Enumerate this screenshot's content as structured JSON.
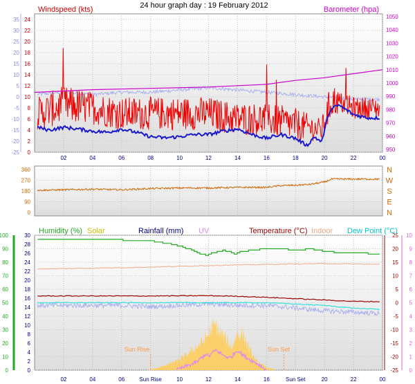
{
  "title": "24 hour graph day : 19 February 2012",
  "colors": {
    "windspeed": "#ee0000",
    "gust_blue": "#1a1acc",
    "barometer": "#cc00cc",
    "temperature_light": "#aab0ee",
    "direction": "#cc6600",
    "humidity": "#22aa22",
    "solar": "#ffcc55",
    "rainfall": "#000088",
    "uv": "#dd88ee",
    "temperature": "#990000",
    "indoor": "#f0a888",
    "dewpoint": "#33dddd",
    "sun_event": "#ff9944"
  },
  "chart_data": [
    {
      "id": "wind",
      "type": "line",
      "left_label": "Windspeed (kts)",
      "right_label": "Barometer (hpa)",
      "x_ticks": [
        "02",
        "04",
        "06",
        "08",
        "10",
        "12",
        "14",
        "16",
        "18",
        "20",
        "22",
        "00"
      ],
      "windspeed_ticks": [
        "0",
        "2",
        "4",
        "6",
        "8",
        "10",
        "12",
        "14",
        "16",
        "18",
        "20",
        "22",
        "24"
      ],
      "outer_temp_ticks": [
        "-25",
        "-20",
        "-15",
        "-10",
        "-5",
        "0",
        "5",
        "10",
        "15",
        "20",
        "25",
        "30",
        "35"
      ],
      "barometer_ticks": [
        "950",
        "960",
        "970",
        "980",
        "990",
        "1000",
        "1010",
        "1020",
        "1030",
        "1040",
        "1050"
      ],
      "windspeed_range": [
        0,
        25
      ],
      "barometer_range": [
        948,
        1052
      ],
      "series": [
        {
          "key": "wind_max",
          "x": [
            0.2,
            2,
            4,
            6,
            8,
            10,
            12,
            14,
            16,
            18,
            19.8,
            20.5,
            21,
            22,
            23,
            23.8
          ],
          "y": [
            10,
            12,
            11,
            10,
            10,
            10,
            10,
            9,
            9,
            8,
            6,
            13,
            11,
            10,
            10,
            10
          ]
        },
        {
          "key": "wind_min",
          "x": [
            0.2,
            2,
            4,
            6,
            8,
            10,
            12,
            14,
            16,
            18,
            19.8,
            20.5,
            21,
            22,
            23,
            23.8
          ],
          "y": [
            4,
            5,
            5,
            4,
            4,
            4,
            4,
            3,
            3,
            2,
            2,
            6,
            7,
            6,
            6,
            6
          ]
        },
        {
          "key": "gust_blue",
          "x": [
            0.2,
            1,
            2,
            3,
            4,
            5,
            6,
            7,
            8,
            9,
            10,
            11,
            12,
            13,
            14,
            15,
            16,
            17,
            18,
            18.8,
            19.3,
            19.8,
            20.3,
            20.7,
            21,
            22,
            23,
            23.8
          ],
          "y": [
            4.5,
            4,
            4.5,
            4.2,
            3.8,
            3.6,
            4.2,
            3.6,
            2.8,
            2.6,
            2.8,
            3.2,
            3.2,
            3.8,
            4.2,
            3.2,
            2.5,
            3.2,
            2.5,
            1.2,
            2.8,
            1.8,
            7.2,
            8.2,
            8.5,
            6.8,
            6.2,
            6.2
          ]
        },
        {
          "key": "pressure",
          "x": [
            0,
            4,
            8,
            12,
            14,
            16,
            18,
            20,
            22,
            24
          ],
          "y": [
            993,
            995,
            996,
            997,
            998,
            999,
            1002,
            1004,
            1007,
            1010
          ]
        },
        {
          "key": "temp_outer",
          "x": [
            0,
            2,
            4,
            6,
            8,
            10,
            12,
            14,
            16,
            18,
            20,
            22,
            24
          ],
          "y": [
            0,
            1,
            0,
            1,
            1,
            2,
            3,
            2,
            1,
            0,
            -1,
            -2,
            -2
          ]
        }
      ]
    },
    {
      "id": "direction",
      "type": "line",
      "ticks": [
        "0",
        "90",
        "180",
        "270",
        "360"
      ],
      "compass": [
        "N",
        "W",
        "S",
        "E",
        "N"
      ],
      "range": [
        0,
        360
      ],
      "series": [
        {
          "key": "wind_dir",
          "x": [
            0,
            2,
            4,
            6,
            8,
            10,
            12,
            14,
            16,
            17,
            18,
            19,
            20,
            20.5,
            22,
            24
          ],
          "y": [
            185,
            190,
            195,
            190,
            200,
            205,
            205,
            210,
            210,
            225,
            228,
            235,
            255,
            280,
            280,
            280
          ]
        }
      ]
    },
    {
      "id": "weather",
      "type": "line",
      "labels": [
        "Humidity (%)",
        "Solar",
        "Rainfall (mm)",
        "UV",
        "Temperature (°C)",
        "Indoor",
        "Dew Point (°C)"
      ],
      "x_ticks": [
        "02",
        "04",
        "06",
        "Sun Rise",
        "10",
        "12",
        "14",
        "16",
        "Sun Set",
        "20",
        "22",
        "00"
      ],
      "sunrise_label": "Sun Rise",
      "sunset_label": "Sun Set",
      "humidity_ticks": [
        "0",
        "10",
        "20",
        "30",
        "40",
        "50",
        "60",
        "70",
        "80",
        "90",
        "100"
      ],
      "rain_ticks": [
        "0",
        "2",
        "4",
        "6",
        "8",
        "10",
        "12",
        "14",
        "16",
        "18",
        "20",
        "22",
        "24",
        "26",
        "28",
        "30"
      ],
      "temp_ticks": [
        "25",
        "20",
        "15",
        "10",
        "5",
        "0",
        "-5",
        "-10",
        "-15",
        "-20",
        "-25"
      ],
      "uv_ticks": [
        "10",
        "9",
        "8",
        "7",
        "6",
        "5",
        "4",
        "3",
        "2",
        "1",
        "0"
      ],
      "humidity_range": [
        0,
        100
      ],
      "temp_range": [
        -25,
        25
      ],
      "series": [
        {
          "key": "humidity",
          "x": [
            0.2,
            4,
            8,
            9,
            10,
            10.5,
            11,
            11.8,
            12.2,
            13,
            13.8,
            14.2,
            15,
            16,
            17,
            18,
            19,
            20,
            21,
            22,
            23.8
          ],
          "y": [
            97,
            97,
            96,
            94,
            92,
            90,
            88,
            85,
            87,
            89,
            86,
            88,
            89,
            90,
            90,
            89,
            90,
            88,
            87,
            87,
            86
          ]
        },
        {
          "key": "indoor",
          "x": [
            0.2,
            4,
            8,
            12,
            16,
            20,
            23.8
          ],
          "y": [
            12.5,
            12.8,
            13.2,
            13.8,
            14.2,
            14.5,
            14.2
          ]
        },
        {
          "key": "temperature",
          "x": [
            0.2,
            4,
            8,
            12,
            14,
            16,
            18,
            20,
            22,
            23.8
          ],
          "y": [
            2.5,
            2.5,
            2.5,
            2.6,
            2.4,
            2.0,
            1.5,
            1.0,
            0.5,
            0.4
          ]
        },
        {
          "key": "dewpoint",
          "x": [
            0.2,
            2,
            4,
            6,
            8,
            10,
            12,
            14,
            16,
            18,
            20,
            22,
            23.8
          ],
          "y": [
            0,
            0,
            0,
            0,
            0,
            0,
            0,
            0,
            0,
            -0.5,
            -1,
            -2,
            -2.5
          ]
        },
        {
          "key": "temp_light",
          "x": [
            0.2,
            2,
            4,
            6,
            8,
            10,
            12,
            14,
            16,
            18,
            20,
            22,
            23.8
          ],
          "y": [
            -1,
            -1,
            -1,
            -1,
            -1.5,
            -1,
            -0.5,
            -1,
            -1,
            -2,
            -3,
            -3.5,
            -4
          ]
        },
        {
          "key": "solar",
          "x": [
            7.8,
            8.5,
            9.2,
            10,
            10.6,
            11.2,
            11.7,
            12,
            12.2,
            12.5,
            12.8,
            13.2,
            13.6,
            14,
            14.4,
            14.8,
            15.3,
            16,
            16.7
          ],
          "y": [
            0,
            3,
            8,
            14,
            22,
            32,
            40,
            48,
            56,
            60,
            50,
            42,
            30,
            50,
            48,
            28,
            12,
            4,
            0
          ]
        },
        {
          "key": "uv",
          "x": [
            9.8,
            10.5,
            11.2,
            11.8,
            12,
            12.5,
            13,
            13.5,
            14,
            14.5,
            15,
            15.5,
            16
          ],
          "y": [
            0,
            0.3,
            0.6,
            1.2,
            1.0,
            1.5,
            1.1,
            0.9,
            1.5,
            1.0,
            0.7,
            0.4,
            0
          ]
        }
      ]
    }
  ]
}
